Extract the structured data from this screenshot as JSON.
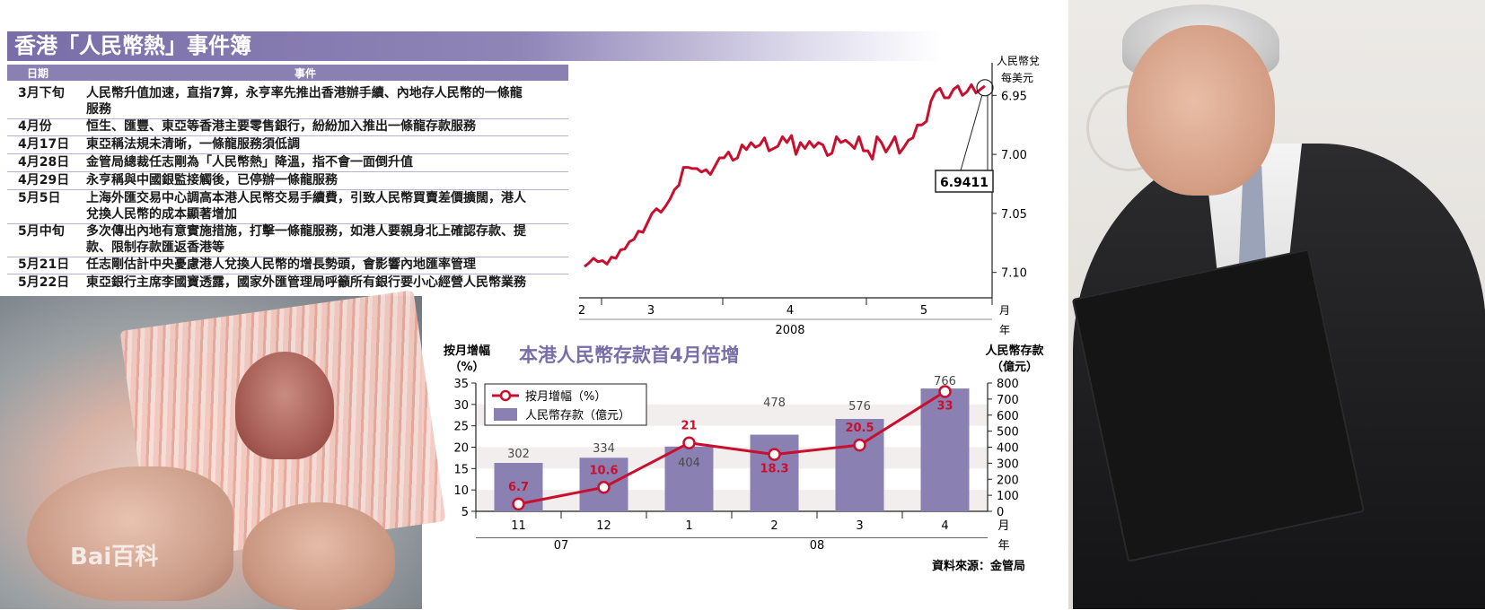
{
  "title": "香港「人民幣熱」事件簿",
  "table": {
    "headers": [
      "日期",
      "事件"
    ],
    "rows": [
      {
        "date": "3月下旬",
        "event": "人民幣升值加速，直指7算，永亨率先推出香港辦手續、內地存人民幣的一條龍服務"
      },
      {
        "date": "4月份",
        "event": "恒生、匯豐、東亞等香港主要零售銀行，紛紛加入推出一條龍存款服務"
      },
      {
        "date": "4月17日",
        "event": "東亞稱法規未清晰，一條龍服務須低調"
      },
      {
        "date": "4月28日",
        "event": "金管局總裁任志剛為「人民幣熱」降溫，指不會一面倒升值"
      },
      {
        "date": "4月29日",
        "event": "永亨稱與中國銀監接觸後，已停辦一條龍服務"
      },
      {
        "date": "5月5日",
        "event": "上海外匯交易中心調高本港人民幣交易手續費，引致人民幣買賣差價擴闊，港人兌換人民幣的成本顯著增加"
      },
      {
        "date": "5月中旬",
        "event": "多次傳出內地有意實施措施，打擊一條龍服務，如港人要親身北上確認存款、提款、限制存款匯返香港等"
      },
      {
        "date": "5月21日",
        "event": "任志剛估計中央憂慮港人兌換人民幣的增長勢頭，會影響內地匯率管理"
      },
      {
        "date": "5月22日",
        "event": "東亞銀行主席李國寶透露，國家外匯管理局呼籲所有銀行要小心經營人民幣業務"
      }
    ]
  },
  "watermark": "Bai百科",
  "source": "資料來源：金管局",
  "chart_data": [
    {
      "type": "line",
      "ylabel": "人民幣兌每美元",
      "y_inverted": true,
      "ylim": [
        7.12,
        6.93
      ],
      "yticks": [
        "6.95",
        "7.00",
        "7.05",
        "7.10"
      ],
      "xticks": [
        "2",
        "3",
        "4",
        "5"
      ],
      "xgroup": "2008",
      "xunit": "月",
      "yunit_x": "年",
      "callout": "6.9411",
      "color": "#c8102e",
      "values": [
        7.095,
        7.092,
        7.088,
        7.091,
        7.09,
        7.093,
        7.087,
        7.088,
        7.081,
        7.08,
        7.074,
        7.072,
        7.065,
        7.066,
        7.058,
        7.05,
        7.046,
        7.049,
        7.044,
        7.038,
        7.03,
        7.026,
        7.011,
        7.011,
        7.012,
        7.012,
        7.015,
        7.013,
        7.017,
        7.01,
        7.003,
        7.003,
        6.998,
        7.005,
        7.003,
        6.992,
        6.996,
        6.99,
        6.994,
        6.992,
        6.986,
        6.997,
        6.995,
        6.993,
        6.985,
        6.99,
        6.984,
        7.0,
        6.99,
        6.995,
        6.989,
        6.994,
        6.99,
        6.992,
        7.001,
        6.999,
        6.985,
        6.99,
        6.988,
        6.991,
        6.995,
        6.985,
        6.997,
        6.997,
        7.004,
        6.985,
        6.99,
        6.998,
        6.992,
        6.985,
        6.999,
        6.994,
        6.988,
        6.986,
        6.975,
        6.975,
        6.972,
        6.955,
        6.947,
        6.944,
        6.952,
        6.952,
        6.945,
        6.942,
        6.95,
        6.947,
        6.941,
        6.948,
        6.945,
        6.942
      ]
    },
    {
      "type": "bar",
      "title": "本港人民幣存款首4月倍增",
      "categories": [
        "11",
        "12",
        "1",
        "2",
        "3",
        "4"
      ],
      "groups": [
        {
          "label": "07",
          "span": [
            0,
            1
          ]
        },
        {
          "label": "08",
          "span": [
            2,
            5
          ]
        }
      ],
      "xunit_top": "月",
      "xunit_bottom": "年",
      "left_axis": {
        "label": [
          "按月增幅",
          "（%）"
        ],
        "ticks": [
          5,
          10,
          15,
          20,
          25,
          30,
          35
        ],
        "range": [
          5,
          35
        ]
      },
      "right_axis": {
        "label": [
          "人民幣存款",
          "（億元）"
        ],
        "ticks": [
          0,
          100,
          200,
          300,
          400,
          500,
          600,
          700,
          800
        ],
        "range": [
          0,
          800
        ]
      },
      "series": [
        {
          "name": "人民幣存款（億元）",
          "kind": "bar",
          "axis": "right",
          "color": "#8a80b2",
          "values": [
            302,
            334,
            404,
            478,
            576,
            766
          ]
        },
        {
          "name": "按月增幅（%）",
          "kind": "line",
          "axis": "left",
          "color": "#c8102e",
          "values": [
            6.7,
            10.6,
            21,
            18.3,
            20.5,
            33
          ]
        }
      ]
    }
  ]
}
